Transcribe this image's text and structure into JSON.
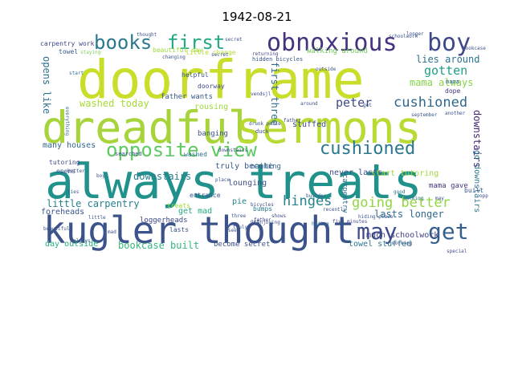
{
  "title": "1942-08-21",
  "words": [
    {
      "text": "doorframe",
      "color": "#c9de2a"
    },
    {
      "text": "dreadful",
      "color": "#a7d43a"
    },
    {
      "text": "sermons",
      "color": "#b8da33"
    },
    {
      "text": "always treats",
      "color": "#21918c"
    },
    {
      "text": "kugler thought",
      "color": "#3b528b"
    },
    {
      "text": "may",
      "color": "#3e4c8a"
    },
    {
      "text": "get",
      "color": "#355f8d"
    },
    {
      "text": "obnoxious",
      "color": "#46327e"
    },
    {
      "text": "boy",
      "color": "#3f4889"
    },
    {
      "text": "books",
      "color": "#2a788e"
    },
    {
      "text": "first",
      "color": "#22a884"
    },
    {
      "text": "opposite view",
      "color": "#5ec962"
    },
    {
      "text": "cushioned",
      "color": "#2a788e"
    },
    {
      "text": "cushioned",
      "color": "#31688e"
    },
    {
      "text": "peter",
      "color": "#3e4a89"
    },
    {
      "text": "going better",
      "color": "#90d743"
    },
    {
      "text": "hinges",
      "color": "#26828e"
    },
    {
      "text": "lasts longer",
      "color": "#31688e"
    },
    {
      "text": "lies around",
      "color": "#2c728e"
    },
    {
      "text": "mama always",
      "color": "#86d549"
    },
    {
      "text": "gotten",
      "color": "#1f9e89"
    },
    {
      "text": "washed today",
      "color": "#a5db36"
    },
    {
      "text": "little carpentry",
      "color": "#27808e"
    },
    {
      "text": "bookcase built",
      "color": "#35b779"
    },
    {
      "text": "downstairs",
      "color": "#287c8e"
    },
    {
      "text": "downstairs",
      "color": "#482878"
    },
    {
      "text": "opens like",
      "color": "#2d708e"
    },
    {
      "text": "first three",
      "color": "#30698e"
    },
    {
      "text": "start tutoring",
      "color": "#9fda3a"
    },
    {
      "text": "go downstairs",
      "color": "#2a788e"
    },
    {
      "text": "many houses",
      "color": "#33638d"
    },
    {
      "text": "father wants",
      "color": "#3a548c"
    },
    {
      "text": "rousing",
      "color": "#9dd93b"
    },
    {
      "text": "banging",
      "color": "#3c4f8a"
    },
    {
      "text": "stuffed",
      "color": "#3e4989"
    },
    {
      "text": "truly become",
      "color": "#39568c"
    },
    {
      "text": "never lasts",
      "color": "#3d4e8a"
    },
    {
      "text": "nailing",
      "color": "#31688e"
    },
    {
      "text": "lounging",
      "color": "#3d4e8a"
    },
    {
      "text": "pie",
      "color": "#25858e"
    },
    {
      "text": "get mad",
      "color": "#22a884"
    },
    {
      "text": "foreheads",
      "color": "#3b528b"
    },
    {
      "text": "loggerheads",
      "color": "#3f4788"
    },
    {
      "text": "day outside",
      "color": "#28ae80"
    },
    {
      "text": "become secret",
      "color": "#3b528b"
    },
    {
      "text": "towel stuffed",
      "color": "#2a788e"
    },
    {
      "text": "much schoolwork",
      "color": "#414487"
    },
    {
      "text": "mama gave",
      "color": "#453581"
    },
    {
      "text": "tutoring",
      "color": "#3e4a89"
    },
    {
      "text": "helpful",
      "color": "#3b528b"
    },
    {
      "text": "doorway",
      "color": "#3e4989"
    },
    {
      "text": "entrance",
      "color": "#3a548c"
    },
    {
      "text": "bumps",
      "color": "#287d8e"
    },
    {
      "text": "lasts",
      "color": "#3a548c"
    },
    {
      "text": "opens",
      "color": "#3b518b"
    },
    {
      "text": "built",
      "color": "#3a548c"
    },
    {
      "text": "carpentry",
      "color": "#2f6c8e"
    },
    {
      "text": "hidden bicycles",
      "color": "#3b528b"
    },
    {
      "text": "returning",
      "color": "#3f4889"
    },
    {
      "text": "dope",
      "color": "#46307e"
    },
    {
      "text": "mama",
      "color": "#34618d"
    },
    {
      "text": "walking around",
      "color": "#6ece58"
    },
    {
      "text": "beautiful day",
      "color": "#9bd93c"
    },
    {
      "text": "little change",
      "color": "#b5de2b"
    },
    {
      "text": "carpentry work",
      "color": "#404588"
    },
    {
      "text": "towel",
      "color": "#37598c"
    },
    {
      "text": "searched",
      "color": "#3b528b"
    },
    {
      "text": "treats",
      "color": "#a2da37"
    },
    {
      "text": "washed",
      "color": "#2c738e"
    },
    {
      "text": "thought",
      "color": "#3b528b"
    },
    {
      "text": "secret",
      "color": "#3c4f8a"
    },
    {
      "text": "bicycles",
      "color": "#3f4889"
    },
    {
      "text": "hiding place",
      "color": "#37598c"
    },
    {
      "text": "staying",
      "color": "#7ad151"
    },
    {
      "text": "start",
      "color": "#2d708e"
    },
    {
      "text": "beautiful",
      "color": "#3b528b"
    },
    {
      "text": "father",
      "color": "#404688"
    },
    {
      "text": "bookcase",
      "color": "#3b528b"
    },
    {
      "text": "longer",
      "color": "#3b528b"
    },
    {
      "text": "walking",
      "color": "#2e6f8e"
    },
    {
      "text": "vendsjl",
      "color": "#3e4c8a"
    },
    {
      "text": "everything",
      "color": "#31688e"
    },
    {
      "text": "always",
      "color": "#375a8c"
    },
    {
      "text": "mad",
      "color": "#3a548c"
    },
    {
      "text": "better",
      "color": "#3b528b"
    },
    {
      "text": "little",
      "color": "#3d4e8a"
    },
    {
      "text": "secret",
      "color": "#3c4f8a"
    },
    {
      "text": "downstairs",
      "color": "#3c4f8a"
    },
    {
      "text": "good",
      "color": "#2c728e"
    },
    {
      "text": "another",
      "color": "#3b528b"
    },
    {
      "text": "special",
      "color": "#3e4989"
    },
    {
      "text": "place",
      "color": "#3b528b"
    },
    {
      "text": "duck",
      "color": "#3e4989"
    },
    {
      "text": "father",
      "color": "#3f4889"
    },
    {
      "text": "builder",
      "color": "#34618d"
    },
    {
      "text": "september",
      "color": "#3b528b"
    },
    {
      "text": "opposite",
      "color": "#40478a"
    },
    {
      "text": "boy",
      "color": "#3b528b"
    },
    {
      "text": "lies",
      "color": "#3b528b"
    },
    {
      "text": "may",
      "color": "#3e4989"
    },
    {
      "text": "truly",
      "color": "#3b528b"
    },
    {
      "text": "outside",
      "color": "#3b528b"
    },
    {
      "text": "schoolwork",
      "color": "#3b528b"
    },
    {
      "text": "working",
      "color": "#3e4c8a"
    },
    {
      "text": "changing",
      "color": "#3b528b"
    },
    {
      "text": "get",
      "color": "#3b528b"
    },
    {
      "text": "get",
      "color": "#3b528b"
    },
    {
      "text": "five minutes",
      "color": "#3e4989"
    },
    {
      "text": "enjoying",
      "color": "#3b528b"
    },
    {
      "text": "recently",
      "color": "#3b528b"
    },
    {
      "text": "hiding",
      "color": "#2c728e"
    },
    {
      "text": "three",
      "color": "#3b528b"
    },
    {
      "text": "drunk petie",
      "color": "#3b528b"
    },
    {
      "text": "around",
      "color": "#3b528b"
    },
    {
      "text": "shows",
      "color": "#3e4c8a"
    },
    {
      "text": "seen",
      "color": "#3b528b"
    }
  ]
}
